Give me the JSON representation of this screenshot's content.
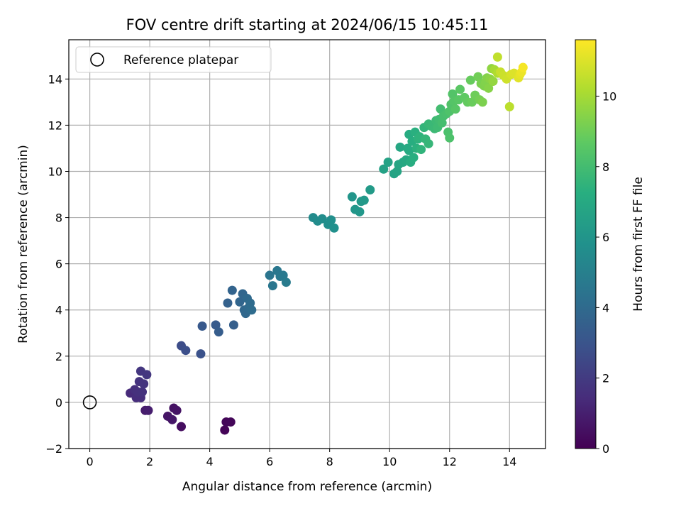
{
  "chart_data": {
    "type": "scatter",
    "title": "FOV centre drift starting at 2024/06/15 10:45:11",
    "xlabel": "Angular distance from reference (arcmin)",
    "ylabel": "Rotation from reference (arcmin)",
    "xlim": [
      -0.7,
      15.2
    ],
    "ylim": [
      -2.0,
      15.7
    ],
    "xticks": [
      0,
      2,
      4,
      6,
      8,
      10,
      12,
      14
    ],
    "yticks": [
      -2,
      0,
      2,
      4,
      6,
      8,
      10,
      12,
      14
    ],
    "grid": true,
    "legend": {
      "position": "top-left",
      "entries": [
        "Reference platepar"
      ]
    },
    "reference_point": {
      "x": 0,
      "y": 0
    },
    "colormap": "viridis",
    "colorbar": {
      "label": "Hours from first FF file",
      "min": 0,
      "max": 11.6,
      "ticks": [
        0,
        2,
        4,
        6,
        8,
        10
      ]
    },
    "points": [
      {
        "x": 4.5,
        "y": -1.2,
        "c": 0.1
      },
      {
        "x": 4.55,
        "y": -0.85,
        "c": 0.15
      },
      {
        "x": 4.7,
        "y": -0.85,
        "c": 0.2
      },
      {
        "x": 3.05,
        "y": -1.05,
        "c": 0.4
      },
      {
        "x": 2.8,
        "y": -0.25,
        "c": 0.55
      },
      {
        "x": 2.9,
        "y": -0.35,
        "c": 0.6
      },
      {
        "x": 2.6,
        "y": -0.6,
        "c": 0.65
      },
      {
        "x": 2.75,
        "y": -0.75,
        "c": 0.7
      },
      {
        "x": 1.85,
        "y": -0.35,
        "c": 0.9
      },
      {
        "x": 1.95,
        "y": -0.35,
        "c": 0.95
      },
      {
        "x": 1.35,
        "y": 0.4,
        "c": 1.4
      },
      {
        "x": 1.55,
        "y": 0.2,
        "c": 1.5
      },
      {
        "x": 1.7,
        "y": 0.2,
        "c": 1.5
      },
      {
        "x": 1.5,
        "y": 0.55,
        "c": 1.55
      },
      {
        "x": 1.6,
        "y": 0.45,
        "c": 1.6
      },
      {
        "x": 1.75,
        "y": 0.45,
        "c": 1.65
      },
      {
        "x": 1.65,
        "y": 0.9,
        "c": 1.7
      },
      {
        "x": 1.8,
        "y": 0.8,
        "c": 1.75
      },
      {
        "x": 1.7,
        "y": 1.35,
        "c": 1.8
      },
      {
        "x": 1.9,
        "y": 1.2,
        "c": 1.85
      },
      {
        "x": 3.05,
        "y": 2.45,
        "c": 2.7
      },
      {
        "x": 3.2,
        "y": 2.25,
        "c": 2.8
      },
      {
        "x": 3.7,
        "y": 2.1,
        "c": 2.9
      },
      {
        "x": 3.75,
        "y": 3.3,
        "c": 3.2
      },
      {
        "x": 4.2,
        "y": 3.35,
        "c": 3.3
      },
      {
        "x": 4.3,
        "y": 3.05,
        "c": 3.4
      },
      {
        "x": 4.8,
        "y": 3.35,
        "c": 3.5
      },
      {
        "x": 4.6,
        "y": 4.3,
        "c": 3.6
      },
      {
        "x": 4.75,
        "y": 4.85,
        "c": 3.7
      },
      {
        "x": 5.0,
        "y": 4.35,
        "c": 3.75
      },
      {
        "x": 5.1,
        "y": 4.7,
        "c": 3.8
      },
      {
        "x": 5.15,
        "y": 4.0,
        "c": 3.85
      },
      {
        "x": 5.2,
        "y": 3.85,
        "c": 3.9
      },
      {
        "x": 5.25,
        "y": 4.5,
        "c": 3.95
      },
      {
        "x": 5.3,
        "y": 4.1,
        "c": 4.0
      },
      {
        "x": 5.35,
        "y": 4.3,
        "c": 4.05
      },
      {
        "x": 5.4,
        "y": 4.0,
        "c": 4.1
      },
      {
        "x": 6.0,
        "y": 5.5,
        "c": 4.5
      },
      {
        "x": 6.1,
        "y": 5.05,
        "c": 4.55
      },
      {
        "x": 6.25,
        "y": 5.7,
        "c": 4.6
      },
      {
        "x": 6.35,
        "y": 5.45,
        "c": 4.65
      },
      {
        "x": 6.45,
        "y": 5.5,
        "c": 4.7
      },
      {
        "x": 6.55,
        "y": 5.2,
        "c": 4.75
      },
      {
        "x": 7.45,
        "y": 8.0,
        "c": 5.5
      },
      {
        "x": 7.6,
        "y": 7.85,
        "c": 5.55
      },
      {
        "x": 7.75,
        "y": 7.95,
        "c": 5.6
      },
      {
        "x": 7.95,
        "y": 7.7,
        "c": 5.65
      },
      {
        "x": 8.05,
        "y": 7.9,
        "c": 5.7
      },
      {
        "x": 8.15,
        "y": 7.55,
        "c": 5.75
      },
      {
        "x": 8.75,
        "y": 8.9,
        "c": 6.0
      },
      {
        "x": 8.85,
        "y": 8.35,
        "c": 6.05
      },
      {
        "x": 9.0,
        "y": 8.25,
        "c": 6.1
      },
      {
        "x": 9.05,
        "y": 8.7,
        "c": 6.15
      },
      {
        "x": 9.15,
        "y": 8.75,
        "c": 6.2
      },
      {
        "x": 9.35,
        "y": 9.2,
        "c": 6.25
      },
      {
        "x": 9.8,
        "y": 10.1,
        "c": 6.6
      },
      {
        "x": 9.95,
        "y": 10.4,
        "c": 6.65
      },
      {
        "x": 10.15,
        "y": 9.9,
        "c": 6.7
      },
      {
        "x": 10.25,
        "y": 10.0,
        "c": 6.75
      },
      {
        "x": 10.3,
        "y": 10.3,
        "c": 6.8
      },
      {
        "x": 10.35,
        "y": 11.05,
        "c": 6.85
      },
      {
        "x": 10.45,
        "y": 10.4,
        "c": 6.9
      },
      {
        "x": 10.55,
        "y": 10.5,
        "c": 6.95
      },
      {
        "x": 10.6,
        "y": 11.0,
        "c": 7.0
      },
      {
        "x": 10.65,
        "y": 10.9,
        "c": 7.05
      },
      {
        "x": 10.65,
        "y": 11.6,
        "c": 7.1
      },
      {
        "x": 10.7,
        "y": 10.4,
        "c": 7.15
      },
      {
        "x": 10.75,
        "y": 11.3,
        "c": 7.2
      },
      {
        "x": 10.8,
        "y": 10.6,
        "c": 7.25
      },
      {
        "x": 10.85,
        "y": 11.7,
        "c": 7.3
      },
      {
        "x": 10.9,
        "y": 11.0,
        "c": 7.35
      },
      {
        "x": 10.95,
        "y": 11.4,
        "c": 7.4
      },
      {
        "x": 11.0,
        "y": 11.5,
        "c": 7.45
      },
      {
        "x": 11.05,
        "y": 10.95,
        "c": 7.5
      },
      {
        "x": 11.15,
        "y": 11.9,
        "c": 7.55
      },
      {
        "x": 11.2,
        "y": 11.4,
        "c": 7.6
      },
      {
        "x": 11.3,
        "y": 11.2,
        "c": 7.65
      },
      {
        "x": 11.3,
        "y": 12.05,
        "c": 7.7
      },
      {
        "x": 11.4,
        "y": 11.95,
        "c": 7.75
      },
      {
        "x": 11.5,
        "y": 11.85,
        "c": 7.8
      },
      {
        "x": 11.55,
        "y": 12.2,
        "c": 7.85
      },
      {
        "x": 11.6,
        "y": 11.9,
        "c": 7.9
      },
      {
        "x": 11.65,
        "y": 12.25,
        "c": 7.95
      },
      {
        "x": 11.7,
        "y": 12.7,
        "c": 8.0
      },
      {
        "x": 11.75,
        "y": 12.1,
        "c": 8.05
      },
      {
        "x": 11.8,
        "y": 12.4,
        "c": 8.1
      },
      {
        "x": 11.9,
        "y": 12.5,
        "c": 8.15
      },
      {
        "x": 11.95,
        "y": 11.7,
        "c": 8.2
      },
      {
        "x": 12.0,
        "y": 11.45,
        "c": 8.25
      },
      {
        "x": 12.0,
        "y": 12.6,
        "c": 8.3
      },
      {
        "x": 12.05,
        "y": 12.9,
        "c": 8.35
      },
      {
        "x": 12.1,
        "y": 13.35,
        "c": 8.4
      },
      {
        "x": 12.15,
        "y": 13.05,
        "c": 8.45
      },
      {
        "x": 12.2,
        "y": 12.7,
        "c": 8.5
      },
      {
        "x": 12.3,
        "y": 13.1,
        "c": 8.55
      },
      {
        "x": 12.35,
        "y": 13.55,
        "c": 8.6
      },
      {
        "x": 12.5,
        "y": 13.2,
        "c": 8.7
      },
      {
        "x": 12.6,
        "y": 13.0,
        "c": 8.8
      },
      {
        "x": 12.7,
        "y": 13.95,
        "c": 8.85
      },
      {
        "x": 12.75,
        "y": 13.0,
        "c": 8.9
      },
      {
        "x": 12.85,
        "y": 13.3,
        "c": 9.0
      },
      {
        "x": 12.95,
        "y": 14.1,
        "c": 9.05
      },
      {
        "x": 13.0,
        "y": 13.1,
        "c": 9.1
      },
      {
        "x": 13.05,
        "y": 13.8,
        "c": 9.2
      },
      {
        "x": 13.1,
        "y": 13.0,
        "c": 9.25
      },
      {
        "x": 13.15,
        "y": 13.7,
        "c": 9.3
      },
      {
        "x": 13.2,
        "y": 13.85,
        "c": 9.35
      },
      {
        "x": 13.25,
        "y": 14.05,
        "c": 9.4
      },
      {
        "x": 13.3,
        "y": 13.6,
        "c": 9.45
      },
      {
        "x": 13.35,
        "y": 14.0,
        "c": 9.5
      },
      {
        "x": 13.4,
        "y": 14.45,
        "c": 9.6
      },
      {
        "x": 13.45,
        "y": 13.9,
        "c": 9.7
      },
      {
        "x": 13.5,
        "y": 14.4,
        "c": 10.0
      },
      {
        "x": 13.6,
        "y": 14.25,
        "c": 10.2
      },
      {
        "x": 13.6,
        "y": 14.95,
        "c": 10.5
      },
      {
        "x": 13.7,
        "y": 14.3,
        "c": 10.6
      },
      {
        "x": 13.8,
        "y": 14.15,
        "c": 10.7
      },
      {
        "x": 13.9,
        "y": 14.0,
        "c": 10.75
      },
      {
        "x": 14.0,
        "y": 12.8,
        "c": 10.4
      },
      {
        "x": 14.05,
        "y": 14.2,
        "c": 10.9
      },
      {
        "x": 14.15,
        "y": 14.25,
        "c": 11.0
      },
      {
        "x": 14.3,
        "y": 14.05,
        "c": 11.1
      },
      {
        "x": 14.35,
        "y": 14.2,
        "c": 11.2
      },
      {
        "x": 14.4,
        "y": 14.3,
        "c": 11.3
      },
      {
        "x": 14.45,
        "y": 14.5,
        "c": 11.45
      }
    ]
  }
}
